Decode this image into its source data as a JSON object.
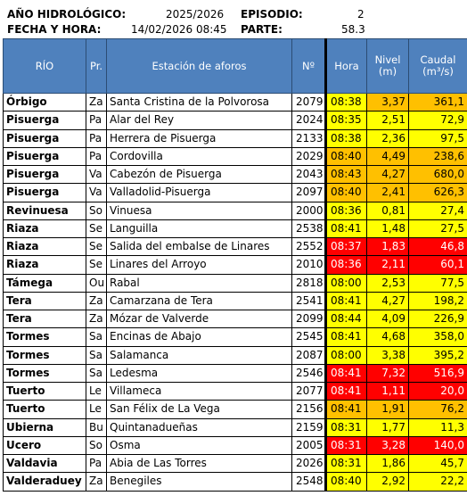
{
  "header": {
    "year_label": "AÑO HIDROLÓGICO:",
    "year_value": "2025/2026",
    "episode_label": "EPISODIO:",
    "episode_value": "2",
    "datetime_label": "FECHA Y HORA:",
    "datetime_value": "14/02/2026 08:45",
    "report_label": "PARTE:",
    "report_value": "58.3"
  },
  "columns": {
    "rio": "RÍO",
    "pr": "Pr.",
    "estacion": "Estación de aforos",
    "num": "Nº",
    "hora": "Hora",
    "nivel": "Nivel\n(m)",
    "caudal": "Caudal\n(m³/s)"
  },
  "colors": {
    "header_blue": "#4F81BD",
    "yellow": "#FFFF00",
    "orange": "#FFC000",
    "red": "#FF0000"
  },
  "rows": [
    {
      "rio": "Órbigo",
      "pr": "Za",
      "estacion": "Santa Cristina de la Polvorosa",
      "num": "2079",
      "hora": "08:38",
      "nivel": "3,37",
      "caudal": "361,1",
      "hora_c": "yellow",
      "nivel_c": "orange",
      "caudal_c": "orange"
    },
    {
      "rio": "Pisuerga",
      "pr": "Pa",
      "estacion": "Alar del Rey",
      "num": "2024",
      "hora": "08:35",
      "nivel": "2,51",
      "caudal": "72,9",
      "hora_c": "yellow",
      "nivel_c": "yellow",
      "caudal_c": "yellow"
    },
    {
      "rio": "Pisuerga",
      "pr": "Pa",
      "estacion": "Herrera de Pisuerga",
      "num": "2133",
      "hora": "08:38",
      "nivel": "2,36",
      "caudal": "97,5",
      "hora_c": "yellow",
      "nivel_c": "yellow",
      "caudal_c": "yellow"
    },
    {
      "rio": "Pisuerga",
      "pr": "Pa",
      "estacion": "Cordovilla",
      "num": "2029",
      "hora": "08:40",
      "nivel": "4,49",
      "caudal": "238,6",
      "hora_c": "orange",
      "nivel_c": "orange",
      "caudal_c": "orange"
    },
    {
      "rio": "Pisuerga",
      "pr": "Va",
      "estacion": "Cabezón de Pisuerga",
      "num": "2043",
      "hora": "08:43",
      "nivel": "4,27",
      "caudal": "680,0",
      "hora_c": "orange",
      "nivel_c": "orange",
      "caudal_c": "orange"
    },
    {
      "rio": "Pisuerga",
      "pr": "Va",
      "estacion": "Valladolid-Pisuerga",
      "num": "2097",
      "hora": "08:40",
      "nivel": "2,41",
      "caudal": "626,3",
      "hora_c": "orange",
      "nivel_c": "orange",
      "caudal_c": "orange"
    },
    {
      "rio": "Revinuesa",
      "pr": "So",
      "estacion": "Vinuesa",
      "num": "2000",
      "hora": "08:36",
      "nivel": "0,81",
      "caudal": "27,4",
      "hora_c": "yellow",
      "nivel_c": "yellow",
      "caudal_c": "yellow"
    },
    {
      "rio": "Riaza",
      "pr": "Se",
      "estacion": "Languilla",
      "num": "2538",
      "hora": "08:41",
      "nivel": "1,48",
      "caudal": "27,5",
      "hora_c": "yellow",
      "nivel_c": "yellow",
      "caudal_c": "yellow"
    },
    {
      "rio": "Riaza",
      "pr": "Se",
      "estacion": "Salida del embalse de Linares",
      "num": "2552",
      "hora": "08:37",
      "nivel": "1,83",
      "caudal": "46,8",
      "hora_c": "red",
      "nivel_c": "red",
      "caudal_c": "red"
    },
    {
      "rio": "Riaza",
      "pr": "Se",
      "estacion": "Linares del Arroyo",
      "num": "2010",
      "hora": "08:36",
      "nivel": "2,11",
      "caudal": "60,1",
      "hora_c": "red",
      "nivel_c": "red",
      "caudal_c": "red"
    },
    {
      "rio": "Támega",
      "pr": "Ou",
      "estacion": "Rabal",
      "num": "2818",
      "hora": "08:00",
      "nivel": "2,53",
      "caudal": "77,5",
      "hora_c": "yellow",
      "nivel_c": "yellow",
      "caudal_c": "yellow"
    },
    {
      "rio": "Tera",
      "pr": "Za",
      "estacion": "Camarzana de Tera",
      "num": "2541",
      "hora": "08:41",
      "nivel": "4,27",
      "caudal": "198,2",
      "hora_c": "yellow",
      "nivel_c": "yellow",
      "caudal_c": "yellow"
    },
    {
      "rio": "Tera",
      "pr": "Za",
      "estacion": "Mózar de Valverde",
      "num": "2099",
      "hora": "08:44",
      "nivel": "4,09",
      "caudal": "226,9",
      "hora_c": "yellow",
      "nivel_c": "yellow",
      "caudal_c": "yellow"
    },
    {
      "rio": "Tormes",
      "pr": "Sa",
      "estacion": "Encinas de Abajo",
      "num": "2545",
      "hora": "08:41",
      "nivel": "4,68",
      "caudal": "358,0",
      "hora_c": "yellow",
      "nivel_c": "yellow",
      "caudal_c": "yellow"
    },
    {
      "rio": "Tormes",
      "pr": "Sa",
      "estacion": "Salamanca",
      "num": "2087",
      "hora": "08:00",
      "nivel": "3,38",
      "caudal": "395,2",
      "hora_c": "yellow",
      "nivel_c": "yellow",
      "caudal_c": "yellow"
    },
    {
      "rio": "Tormes",
      "pr": "Sa",
      "estacion": "Ledesma",
      "num": "2546",
      "hora": "08:41",
      "nivel": "7,32",
      "caudal": "516,9",
      "hora_c": "red",
      "nivel_c": "red",
      "caudal_c": "red"
    },
    {
      "rio": "Tuerto",
      "pr": "Le",
      "estacion": "Villameca",
      "num": "2077",
      "hora": "08:41",
      "nivel": "1,11",
      "caudal": "20,0",
      "hora_c": "red",
      "nivel_c": "red",
      "caudal_c": "red"
    },
    {
      "rio": "Tuerto",
      "pr": "Le",
      "estacion": "San Félix de La Vega",
      "num": "2156",
      "hora": "08:41",
      "nivel": "1,91",
      "caudal": "76,2",
      "hora_c": "orange",
      "nivel_c": "orange",
      "caudal_c": "orange"
    },
    {
      "rio": "Ubierna",
      "pr": "Bu",
      "estacion": "Quintanadueñas",
      "num": "2159",
      "hora": "08:31",
      "nivel": "1,77",
      "caudal": "11,3",
      "hora_c": "yellow",
      "nivel_c": "yellow",
      "caudal_c": "yellow"
    },
    {
      "rio": "Ucero",
      "pr": "So",
      "estacion": "Osma",
      "num": "2005",
      "hora": "08:31",
      "nivel": "3,28",
      "caudal": "140,0",
      "hora_c": "red",
      "nivel_c": "red",
      "caudal_c": "red"
    },
    {
      "rio": "Valdavia",
      "pr": "Pa",
      "estacion": "Abia de Las Torres",
      "num": "2026",
      "hora": "08:31",
      "nivel": "1,86",
      "caudal": "45,7",
      "hora_c": "yellow",
      "nivel_c": "yellow",
      "caudal_c": "yellow"
    },
    {
      "rio": "Valderaduey",
      "pr": "Za",
      "estacion": "Benegiles",
      "num": "2548",
      "hora": "08:40",
      "nivel": "2,92",
      "caudal": "22,2",
      "hora_c": "yellow",
      "nivel_c": "yellow",
      "caudal_c": "yellow"
    }
  ]
}
